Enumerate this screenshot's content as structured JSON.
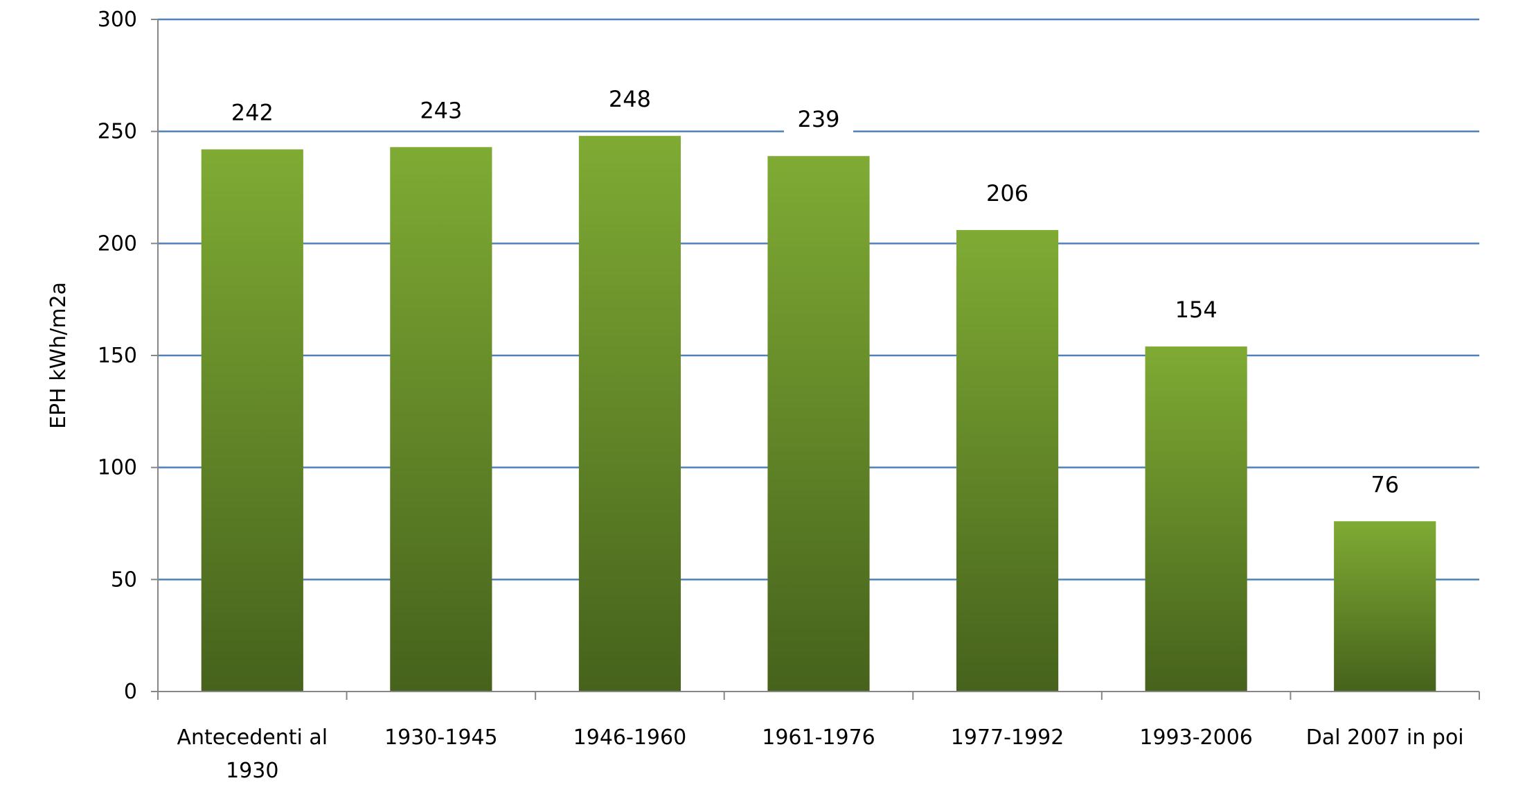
{
  "chart_data": {
    "type": "bar",
    "title": "",
    "xlabel": "",
    "ylabel": "EPH kWh/m2a",
    "ylim": [
      0,
      300
    ],
    "yticks": [
      0,
      50,
      100,
      150,
      200,
      250,
      300
    ],
    "grid": true,
    "legend": "none",
    "categories": [
      [
        "Antecedenti al",
        "1930"
      ],
      [
        "1930-1945"
      ],
      [
        "1946-1960"
      ],
      [
        "1961-1976"
      ],
      [
        "1977-1992"
      ],
      [
        "1993-2006"
      ],
      [
        "Dal 2007 in poi"
      ]
    ],
    "values": [
      242,
      243,
      248,
      239,
      206,
      154,
      76
    ],
    "data_labels": [
      "242",
      "243",
      "248",
      "239",
      "206",
      "154",
      "76"
    ],
    "colors": {
      "bar_top": "#7FAB34",
      "bar_bottom": "#46621C",
      "grid": "#4F81BD",
      "axis": "#868686"
    }
  }
}
